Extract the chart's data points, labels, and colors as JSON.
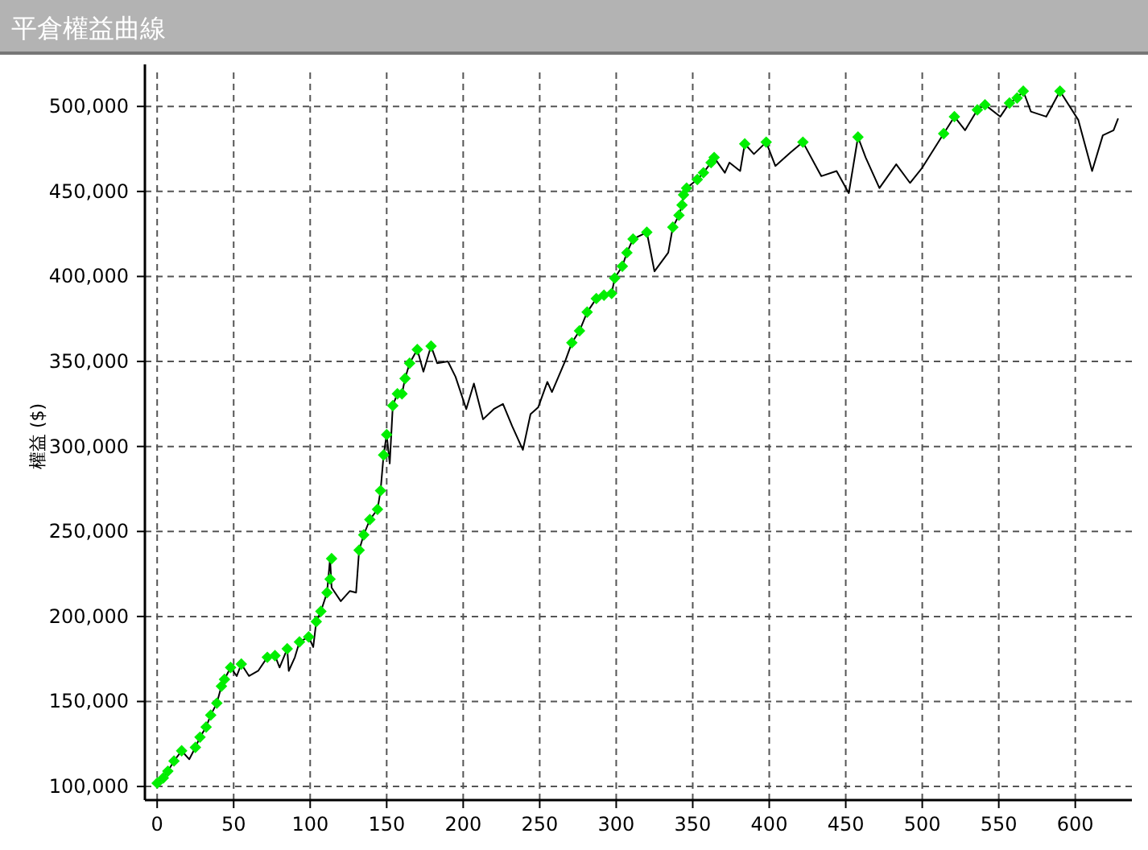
{
  "chart_data": {
    "type": "line",
    "title": "平倉權益曲線",
    "ylabel": "權益 ($)",
    "xlim": [
      -8,
      637
    ],
    "ylim": [
      92000,
      520000
    ],
    "xticks": [
      0,
      50,
      100,
      150,
      200,
      250,
      300,
      350,
      400,
      450,
      500,
      550,
      600
    ],
    "yticks": [
      {
        "value": 100000,
        "label": "100,000"
      },
      {
        "value": 150000,
        "label": "150,000"
      },
      {
        "value": 200000,
        "label": "200,000"
      },
      {
        "value": 250000,
        "label": "250,000"
      },
      {
        "value": 300000,
        "label": "300,000"
      },
      {
        "value": 350000,
        "label": "350,000"
      },
      {
        "value": 400000,
        "label": "400,000"
      },
      {
        "value": 450000,
        "label": "450,000"
      },
      {
        "value": 500000,
        "label": "500,000"
      }
    ],
    "grid": true,
    "series": [
      {
        "color": "#000000",
        "marker": "none",
        "line_style": "solid",
        "x": [
          0,
          4,
          7,
          11,
          16,
          21,
          25,
          28,
          32,
          35,
          39,
          42,
          44,
          48,
          52,
          55,
          60,
          66,
          72,
          77,
          80,
          85,
          86,
          90,
          93,
          99,
          102,
          104,
          107,
          111,
          113,
          114,
          120,
          126,
          130,
          132,
          135,
          139,
          144,
          146,
          148,
          150,
          152,
          154,
          157,
          160,
          162,
          165,
          170,
          174,
          179,
          183,
          190,
          195,
          202,
          207,
          213,
          220,
          226,
          232,
          239,
          244,
          249,
          255,
          258,
          267,
          271,
          276,
          281,
          287,
          292,
          297,
          299,
          304,
          307,
          311,
          320,
          325,
          334,
          337,
          341,
          343,
          344,
          346,
          353,
          357,
          362,
          364,
          371,
          374,
          381,
          384,
          390,
          398,
          404,
          414,
          422,
          434,
          444,
          452,
          458,
          463,
          472,
          483,
          492,
          500,
          514,
          521,
          528,
          536,
          541,
          551,
          557,
          562,
          566,
          571,
          581,
          590,
          602,
          611,
          618,
          625,
          628
        ],
        "values": [
          102000,
          105000,
          109000,
          115000,
          121000,
          116000,
          123000,
          129000,
          135000,
          142000,
          149000,
          159000,
          163000,
          170000,
          165000,
          172000,
          165000,
          168000,
          176000,
          177000,
          170000,
          181000,
          168000,
          176000,
          185000,
          188000,
          182000,
          197000,
          203000,
          214000,
          234000,
          217000,
          209000,
          215000,
          214000,
          239000,
          248000,
          257000,
          263000,
          274000,
          295000,
          307000,
          290000,
          324000,
          331000,
          331000,
          340000,
          349000,
          357000,
          344000,
          359000,
          349000,
          350000,
          341000,
          322000,
          337000,
          316000,
          322000,
          325000,
          312000,
          298000,
          319000,
          323000,
          338000,
          332000,
          351000,
          361000,
          368000,
          379000,
          387000,
          389000,
          390000,
          399000,
          406000,
          414000,
          422000,
          426000,
          403000,
          414000,
          429000,
          436000,
          442000,
          448000,
          452000,
          457000,
          461000,
          467000,
          470000,
          461000,
          467000,
          462000,
          478000,
          472000,
          479000,
          465000,
          473000,
          479000,
          459000,
          462000,
          449000,
          482000,
          470000,
          452000,
          466000,
          455000,
          464000,
          484000,
          494000,
          486000,
          498000,
          501000,
          494000,
          502000,
          505000,
          509000,
          497000,
          494000,
          509000,
          492000,
          462000,
          483000,
          486000,
          493000
        ]
      },
      {
        "type": "scatter",
        "color": "#00ee00",
        "marker": "diamond",
        "x": [
          0,
          4,
          7,
          11,
          16,
          25,
          28,
          32,
          35,
          39,
          42,
          44,
          48,
          55,
          72,
          77,
          85,
          93,
          99,
          104,
          107,
          111,
          113,
          114,
          132,
          135,
          139,
          144,
          146,
          148,
          150,
          154,
          157,
          160,
          162,
          165,
          170,
          179,
          271,
          276,
          281,
          287,
          292,
          297,
          299,
          304,
          307,
          311,
          320,
          337,
          341,
          343,
          344,
          346,
          353,
          357,
          362,
          364,
          384,
          398,
          422,
          458,
          514,
          521,
          536,
          541,
          557,
          562,
          566,
          590
        ],
        "values": [
          102000,
          105000,
          109000,
          115000,
          121000,
          123000,
          129000,
          135000,
          142000,
          149000,
          159000,
          163000,
          170000,
          172000,
          176000,
          177000,
          181000,
          185000,
          188000,
          197000,
          203000,
          214000,
          222000,
          234000,
          239000,
          248000,
          257000,
          263000,
          274000,
          295000,
          307000,
          324000,
          331000,
          331000,
          340000,
          349000,
          357000,
          359000,
          361000,
          368000,
          379000,
          387000,
          389000,
          390000,
          399000,
          406000,
          414000,
          422000,
          426000,
          429000,
          436000,
          442000,
          448000,
          452000,
          457000,
          461000,
          467000,
          470000,
          478000,
          479000,
          479000,
          482000,
          484000,
          494000,
          498000,
          501000,
          502000,
          505000,
          509000,
          509000
        ]
      }
    ]
  }
}
